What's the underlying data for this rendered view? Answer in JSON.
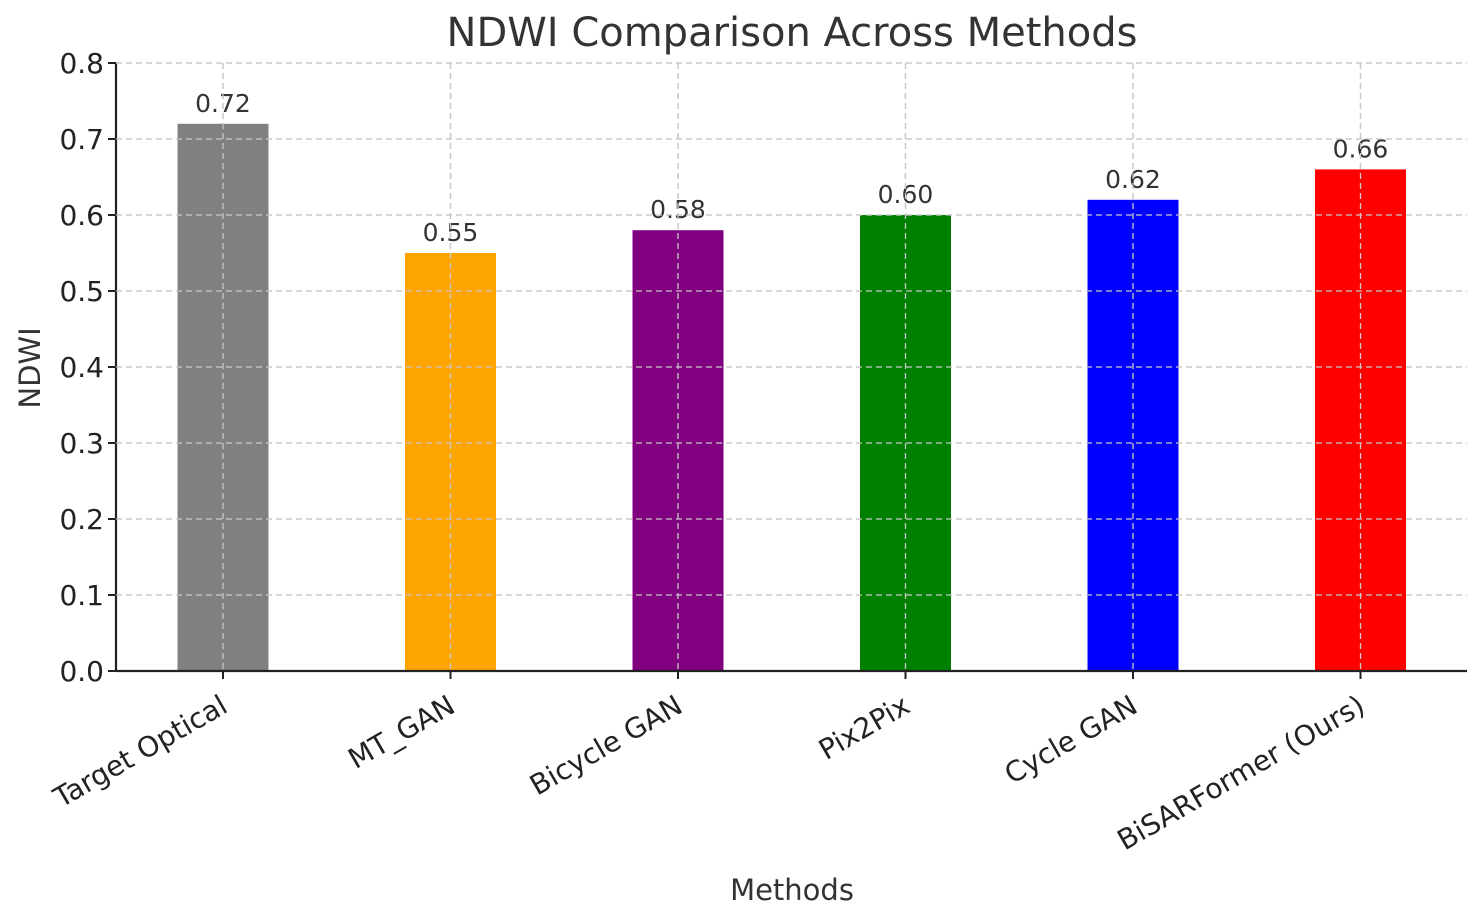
{
  "chart_data": {
    "type": "bar",
    "title": "NDWI Comparison Across Methods",
    "xlabel": "Methods",
    "ylabel": "NDWI",
    "categories": [
      "Target Optical",
      "MT_GAN",
      "Bicycle GAN",
      "Pix2Pix",
      "Cycle GAN",
      "BiSARFormer (Ours)"
    ],
    "values": [
      0.72,
      0.55,
      0.58,
      0.6,
      0.62,
      0.66
    ],
    "data_labels": [
      "0.72",
      "0.55",
      "0.58",
      "0.60",
      "0.62",
      "0.66"
    ],
    "colors": [
      "#808080",
      "#FFA500",
      "#800080",
      "#008000",
      "#0000FF",
      "#FF0000"
    ],
    "ylim": [
      0.0,
      0.8
    ],
    "yticks": [
      0.0,
      0.1,
      0.2,
      0.3,
      0.4,
      0.5,
      0.6,
      0.7,
      0.8
    ],
    "ytick_labels": [
      "0.0",
      "0.1",
      "0.2",
      "0.3",
      "0.4",
      "0.5",
      "0.6",
      "0.7",
      "0.8"
    ],
    "grid": true,
    "xtick_rotation_deg": 30
  }
}
